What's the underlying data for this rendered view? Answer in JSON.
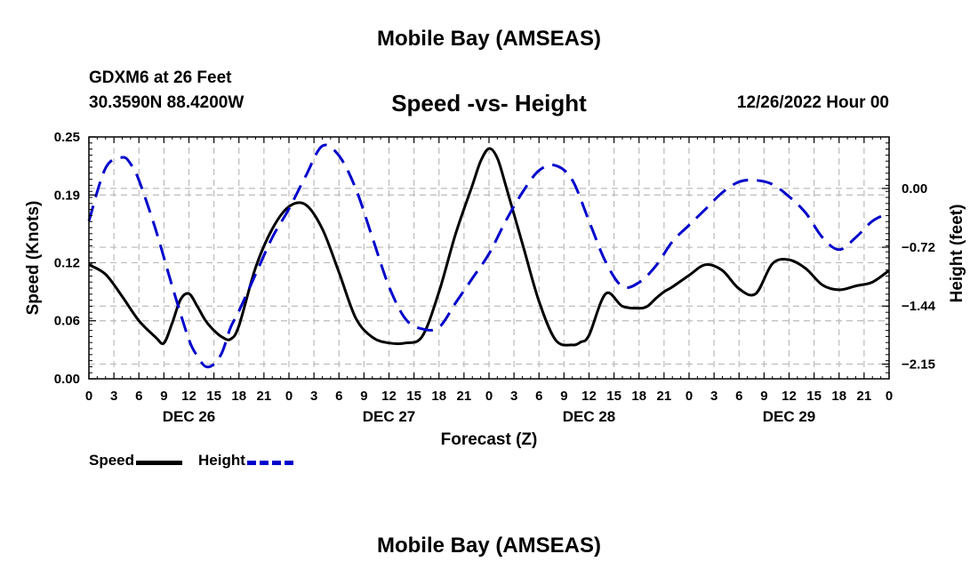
{
  "header": {
    "title": "Mobile Bay (AMSEAS)",
    "station": "GDXM6 at 26 Feet",
    "coords": "30.3590N  88.4200W",
    "subtitle": "Speed -vs- Height",
    "timestamp": "12/26/2022 Hour 00"
  },
  "footer": {
    "title": "Mobile Bay (AMSEAS)"
  },
  "legend": {
    "speed_label": "Speed",
    "height_label": "Height"
  },
  "colors": {
    "speed": "#000000",
    "height": "#0000cc",
    "grid": "#bbbbbb"
  },
  "chart_data": {
    "type": "line",
    "title": "Speed -vs- Height",
    "xlabel": "Forecast (Z)",
    "ylabel": "Speed (Knots)",
    "y2label": "Height (feet)",
    "xlim": [
      0,
      96
    ],
    "ylim": [
      0,
      0.25
    ],
    "y2lim": [
      -2.33,
      0.63
    ],
    "x_ticks": [
      0,
      3,
      6,
      9,
      12,
      15,
      18,
      21,
      24,
      27,
      30,
      33,
      36,
      39,
      42,
      45,
      48,
      51,
      54,
      57,
      60,
      63,
      66,
      69,
      72,
      75,
      78,
      81,
      84,
      87,
      90,
      93,
      96
    ],
    "x_tick_labels": [
      "0",
      "3",
      "6",
      "9",
      "12",
      "15",
      "18",
      "21",
      "0",
      "3",
      "6",
      "9",
      "12",
      "15",
      "18",
      "21",
      "0",
      "3",
      "6",
      "9",
      "12",
      "15",
      "18",
      "21",
      "0",
      "3",
      "6",
      "9",
      "12",
      "15",
      "18",
      "21",
      "0"
    ],
    "date_labels": [
      {
        "x": 12,
        "label": "DEC 26"
      },
      {
        "x": 36,
        "label": "DEC 27"
      },
      {
        "x": 60,
        "label": "DEC 28"
      },
      {
        "x": 84,
        "label": "DEC 29"
      }
    ],
    "y_ticks": [
      0.0,
      0.06,
      0.12,
      0.19,
      0.25
    ],
    "y_tick_labels": [
      "0.00",
      "0.06",
      "0.12",
      "0.19",
      "0.25"
    ],
    "y2_ticks": [
      0.0,
      -0.72,
      -1.44,
      -2.15
    ],
    "y2_tick_labels": [
      "0.00",
      "−0.72",
      "−1.44",
      "−2.15"
    ],
    "series": [
      {
        "name": "Speed",
        "axis": "left",
        "x": [
          0,
          2,
          4,
          6,
          8,
          9,
          10,
          11,
          12,
          13,
          14,
          15,
          16,
          17,
          18,
          20,
          22,
          24,
          26,
          28,
          30,
          32,
          34,
          36,
          38,
          40,
          42,
          44,
          46,
          47,
          48,
          49,
          50,
          52,
          54,
          56,
          58,
          59,
          60,
          62,
          64,
          66,
          67,
          68,
          69,
          70,
          72,
          74,
          76,
          78,
          80,
          82,
          84,
          86,
          88,
          90,
          92,
          94,
          96
        ],
        "y": [
          0.118,
          0.108,
          0.085,
          0.06,
          0.043,
          0.037,
          0.058,
          0.082,
          0.088,
          0.075,
          0.06,
          0.05,
          0.043,
          0.041,
          0.055,
          0.115,
          0.155,
          0.178,
          0.18,
          0.155,
          0.11,
          0.063,
          0.043,
          0.037,
          0.037,
          0.044,
          0.09,
          0.15,
          0.2,
          0.225,
          0.238,
          0.228,
          0.2,
          0.14,
          0.08,
          0.04,
          0.035,
          0.038,
          0.045,
          0.088,
          0.075,
          0.073,
          0.075,
          0.083,
          0.09,
          0.095,
          0.107,
          0.118,
          0.112,
          0.093,
          0.088,
          0.119,
          0.123,
          0.114,
          0.097,
          0.092,
          0.096,
          0.1,
          0.112
        ]
      },
      {
        "name": "Height",
        "axis": "right",
        "x": [
          0,
          2,
          4,
          5,
          6,
          8,
          10,
          12,
          13,
          14,
          15,
          16,
          17,
          18,
          20,
          22,
          24,
          26,
          28,
          30,
          32,
          34,
          36,
          38,
          40,
          42,
          44,
          46,
          48,
          50,
          52,
          54,
          56,
          58,
          60,
          62,
          64,
          66,
          68,
          70,
          72,
          74,
          76,
          78,
          80,
          82,
          84,
          86,
          88,
          90,
          92,
          94,
          96
        ],
        "y": [
          -0.4,
          0.25,
          0.38,
          0.3,
          0.1,
          -0.5,
          -1.2,
          -1.85,
          -2.05,
          -2.18,
          -2.15,
          -2.0,
          -1.7,
          -1.5,
          -1.05,
          -0.6,
          -0.25,
          0.15,
          0.52,
          0.4,
          0.0,
          -0.6,
          -1.2,
          -1.6,
          -1.72,
          -1.7,
          -1.4,
          -1.1,
          -0.8,
          -0.4,
          -0.05,
          0.22,
          0.28,
          0.1,
          -0.4,
          -0.9,
          -1.2,
          -1.15,
          -0.95,
          -0.65,
          -0.45,
          -0.25,
          -0.05,
          0.08,
          0.1,
          0.05,
          -0.1,
          -0.3,
          -0.6,
          -0.75,
          -0.6,
          -0.4,
          -0.3
        ]
      }
    ]
  }
}
